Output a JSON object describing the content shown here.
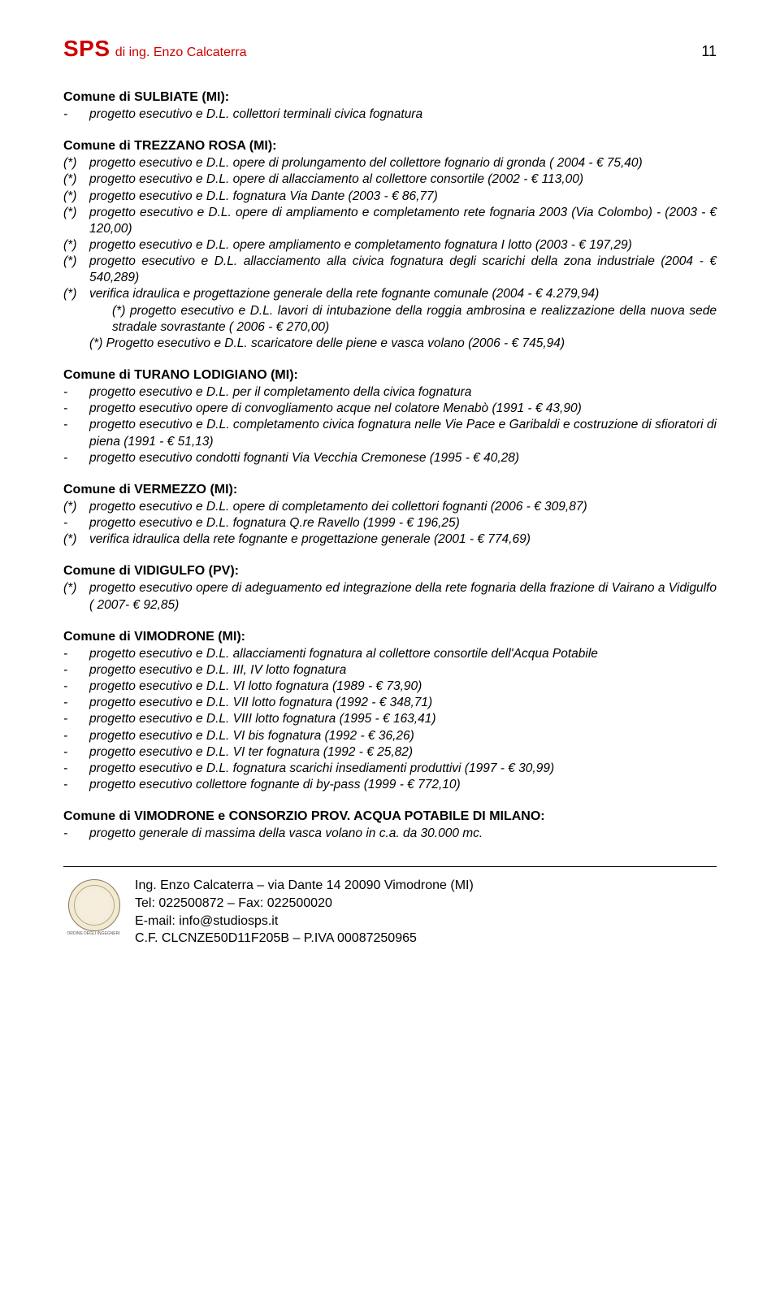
{
  "header": {
    "brand_sps": "SPS",
    "brand_sub": "di ing. Enzo Calcaterra",
    "page_number": "11"
  },
  "sections": [
    {
      "title": "Comune di SULBIATE (MI):",
      "items": [
        {
          "marker": "-",
          "text": "progetto esecutivo e D.L. collettori terminali civica fognatura"
        }
      ]
    },
    {
      "title": "Comune di TREZZANO ROSA (MI):",
      "items": [
        {
          "marker": "(*)",
          "text": "progetto  esecutivo e D.L. opere di prolungamento del collettore fognario di gronda ( 2004 - € 75,40)"
        },
        {
          "marker": "(*)",
          "text": "progetto esecutivo e D.L. opere di allacciamento al collettore consortile (2002 - € 113,00)"
        },
        {
          "marker": "(*)",
          "text": "progetto esecutivo e D.L. fognatura Via Dante (2003 - € 86,77)"
        },
        {
          "marker": "(*)",
          "text": "progetto esecutivo e D.L. opere di ampliamento e completamento rete fognaria 2003 (Via Colombo) - (2003 - € 120,00)"
        },
        {
          "marker": "(*)",
          "text": "progetto esecutivo e D.L. opere ampliamento e completamento fognatura I lotto (2003 - € 197,29)"
        },
        {
          "marker": "(*)",
          "text": "progetto esecutivo e D.L. allacciamento alla civica fognatura degli scarichi della zona industriale (2004 - € 540,289)"
        },
        {
          "marker": "(*)",
          "text": "verifica idraulica e progettazione generale della rete fognante comunale (2004 - € 4.279,94)"
        },
        {
          "marker": "",
          "indent": true,
          "text": "(*) progetto esecutivo e D.L. lavori di intubazione della roggia ambrosina e realizzazione della nuova sede stradale sovrastante ( 2006 - € 270,00)"
        },
        {
          "marker": "",
          "text": "(*) Progetto esecutivo e D.L. scaricatore delle piene e vasca volano (2006 - € 745,94)"
        }
      ]
    },
    {
      "title": "Comune di TURANO LODIGIANO (MI):",
      "items": [
        {
          "marker": "-",
          "text": "progetto esecutivo e D.L. per il completamento della civica fognatura"
        },
        {
          "marker": "-",
          "text": "progetto esecutivo opere di convogliamento acque nel colatore Menabò (1991 - € 43,90)"
        },
        {
          "marker": "-",
          "text": "progetto esecutivo e D.L. completamento civica fognatura nelle Vie Pace e Garibaldi e costruzione di sfioratori di piena (1991 - € 51,13)"
        },
        {
          "marker": "-",
          "text": "progetto esecutivo condotti fognanti Via Vecchia Cremonese (1995 - € 40,28)"
        }
      ]
    },
    {
      "title": "Comune di VERMEZZO (MI):",
      "items": [
        {
          "marker": "(*)",
          "text": "progetto esecutivo e D.L. opere di completamento dei collettori fognanti (2006 - € 309,87)"
        },
        {
          "marker": "-",
          "text": "progetto esecutivo e D.L. fognatura Q.re Ravello (1999 - € 196,25)"
        },
        {
          "marker": "(*)",
          "text": "verifica idraulica della rete fognante e progettazione generale (2001 - € 774,69)"
        }
      ]
    },
    {
      "title": "Comune di VIDIGULFO (PV):",
      "items": [
        {
          "marker": "(*)",
          "text": "progetto esecutivo opere di adeguamento ed integrazione della rete fognaria della frazione di Vairano a Vidigulfo ( 2007- € 92,85)"
        }
      ]
    },
    {
      "title": "Comune di VIMODRONE (MI):",
      "items": [
        {
          "marker": "-",
          "text": "progetto esecutivo e D.L. allacciamenti fognatura al collettore consortile dell'Acqua Potabile"
        },
        {
          "marker": "-",
          "text": "progetto esecutivo e D.L. III, IV lotto fognatura"
        },
        {
          "marker": "-",
          "text": "progetto esecutivo e D.L. VI lotto fognatura (1989 - € 73,90)"
        },
        {
          "marker": "-",
          "text": "progetto esecutivo e D.L. VII lotto fognatura (1992 - € 348,71)"
        },
        {
          "marker": "-",
          "text": "progetto esecutivo e D.L. VIII lotto fognatura (1995 - € 163,41)"
        },
        {
          "marker": "-",
          "text": "progetto esecutivo e D.L. VI bis fognatura (1992 - € 36,26)"
        },
        {
          "marker": "-",
          "text": "progetto esecutivo e D.L. VI ter fognatura (1992 - € 25,82)"
        },
        {
          "marker": "-",
          "text": "progetto esecutivo e D.L. fognatura scarichi insediamenti produttivi (1997 - € 30,99)"
        },
        {
          "marker": "-",
          "text": "progetto esecutivo collettore fognante di by-pass (1999 - € 772,10)"
        }
      ]
    },
    {
      "title": "Comune di VIMODRONE e CONSORZIO PROV. ACQUA POTABILE DI MILANO:",
      "items": [
        {
          "marker": "-",
          "text": "progetto generale di massima della vasca volano in c.a. da 30.000 mc."
        }
      ]
    }
  ],
  "footer": {
    "line1": "Ing. Enzo Calcaterra – via Dante 14 20090 Vimodrone (MI)",
    "line2": "Tel: 022500872 – Fax: 022500020",
    "line3": "E-mail: info@studiosps.it",
    "line4": "C.F. CLCNZE50D11F205B – P.IVA  00087250965",
    "seal_caption": "ORDINE DEGLI INGEGNERI"
  }
}
